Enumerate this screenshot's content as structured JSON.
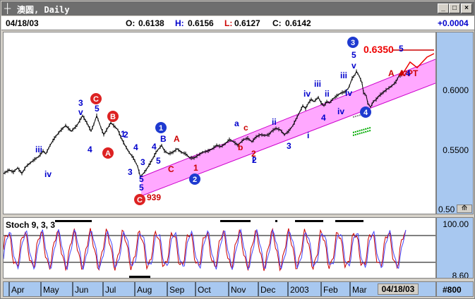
{
  "window": {
    "title": "澳圆, Daily",
    "minimize": "_",
    "maximize": "□",
    "close": "×"
  },
  "info": {
    "date": "04/18/03",
    "open_label": "O:",
    "open": "0.6138",
    "high_label": "H:",
    "high": "0.6156",
    "low_label": "L:",
    "low": "0.6127",
    "close_label": "C:",
    "close": "0.6142",
    "change": "+0.0004"
  },
  "colors": {
    "wave_blue": "#0000cc",
    "wave_red": "#cc0000",
    "channel": "#ff99ff",
    "axis_bg": "#a8c8f0",
    "stoch_k": "#cc0000",
    "stoch_d": "#4444ff"
  },
  "main_axis": {
    "ticks": [
      "0.6000",
      "0.5500",
      "0.50"
    ]
  },
  "sub_axis": {
    "ticks": [
      "100.00",
      "8.60"
    ]
  },
  "indicator": {
    "label": "Stoch 9, 3, 3"
  },
  "time_axis": {
    "months": [
      "Apr",
      "May",
      "Jun",
      "Jul",
      "Aug",
      "Sep",
      "Oct",
      "Nov",
      "Dec",
      "2003",
      "Feb",
      "Mar"
    ],
    "current_date": "04/18/03",
    "zoom": "#800"
  },
  "annotations": {
    "target": "0.6350",
    "target_suffix": "5",
    "pt": "PT",
    "low_value": "939",
    "circled": [
      "C",
      "B",
      "A",
      "C",
      "1",
      "2",
      "3",
      "4"
    ],
    "wave_labels": [
      "iii",
      "iv",
      "3",
      "v",
      "5",
      "4",
      "1",
      "2",
      "3",
      "4",
      "5",
      "3",
      "4",
      "5",
      "B",
      "A",
      "C",
      "1",
      "a",
      "b",
      "c",
      "2",
      "i",
      "ii",
      "3",
      "iii",
      "iv",
      "i",
      "ii",
      "iv",
      "4",
      "iii",
      "5",
      "v",
      "iv",
      "4",
      "A",
      "5",
      "A",
      "2"
    ]
  }
}
